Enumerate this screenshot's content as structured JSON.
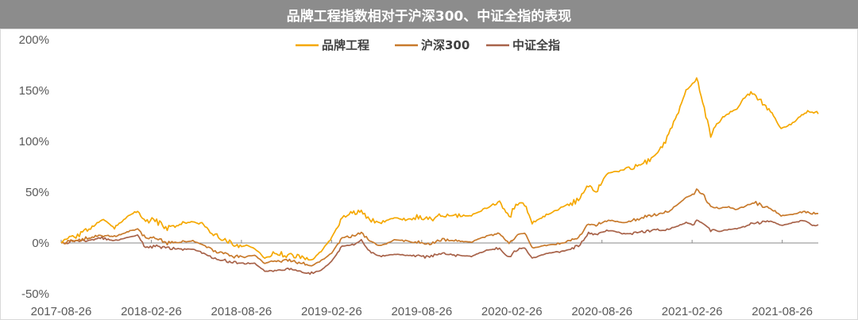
{
  "chart_data": {
    "type": "line",
    "title": "品牌工程指数相对于沪深300、中证全指的表现",
    "xlabel": "",
    "ylabel": "",
    "y_axis_unit": "%",
    "ylim": [
      -50,
      200
    ],
    "y_ticks": [
      "200%",
      "150%",
      "100%",
      "50%",
      "0%",
      "-50%"
    ],
    "y_tick_values": [
      200,
      150,
      100,
      50,
      0,
      -50
    ],
    "x_tick_labels": [
      "2017-08-26",
      "2018-02-26",
      "2018-08-26",
      "2019-02-26",
      "2019-08-26",
      "2020-02-26",
      "2020-08-26",
      "2021-02-26",
      "2021-08-26"
    ],
    "x_range": [
      "2017-08-26",
      "2021-10-10"
    ],
    "grid": false,
    "legend_position": "top-center",
    "series": [
      {
        "name": "品牌工程",
        "color": "#F5A800",
        "points": [
          [
            "2017-08-26",
            0
          ],
          [
            "2017-10-01",
            8
          ],
          [
            "2017-11-15",
            22
          ],
          [
            "2017-12-10",
            15
          ],
          [
            "2018-01-10",
            28
          ],
          [
            "2018-01-25",
            31
          ],
          [
            "2018-02-10",
            22
          ],
          [
            "2018-03-01",
            22
          ],
          [
            "2018-03-25",
            14
          ],
          [
            "2018-04-25",
            19
          ],
          [
            "2018-05-15",
            21
          ],
          [
            "2018-06-05",
            18
          ],
          [
            "2018-06-25",
            8
          ],
          [
            "2018-07-15",
            5
          ],
          [
            "2018-08-05",
            -2
          ],
          [
            "2018-08-26",
            -3
          ],
          [
            "2018-09-15",
            -5
          ],
          [
            "2018-10-05",
            -15
          ],
          [
            "2018-10-25",
            -10
          ],
          [
            "2018-11-20",
            -12
          ],
          [
            "2018-12-15",
            -14
          ],
          [
            "2019-01-03",
            -17
          ],
          [
            "2019-01-25",
            -8
          ],
          [
            "2019-02-15",
            5
          ],
          [
            "2019-03-08",
            25
          ],
          [
            "2019-03-25",
            30
          ],
          [
            "2019-04-15",
            31
          ],
          [
            "2019-05-05",
            22
          ],
          [
            "2019-05-25",
            20
          ],
          [
            "2019-06-20",
            25
          ],
          [
            "2019-07-15",
            23
          ],
          [
            "2019-08-10",
            26
          ],
          [
            "2019-08-26",
            22
          ],
          [
            "2019-09-20",
            28
          ],
          [
            "2019-10-20",
            27
          ],
          [
            "2019-11-20",
            27
          ],
          [
            "2019-12-20",
            34
          ],
          [
            "2020-01-15",
            41
          ],
          [
            "2020-02-03",
            25
          ],
          [
            "2020-02-20",
            40
          ],
          [
            "2020-03-05",
            38
          ],
          [
            "2020-03-20",
            20
          ],
          [
            "2020-04-20",
            28
          ],
          [
            "2020-05-20",
            36
          ],
          [
            "2020-06-20",
            42
          ],
          [
            "2020-07-10",
            56
          ],
          [
            "2020-07-25",
            50
          ],
          [
            "2020-08-15",
            68
          ],
          [
            "2020-08-26",
            70
          ],
          [
            "2020-09-15",
            72
          ],
          [
            "2020-10-15",
            76
          ],
          [
            "2020-11-15",
            83
          ],
          [
            "2020-12-10",
            100
          ],
          [
            "2021-01-05",
            130
          ],
          [
            "2021-01-20",
            150
          ],
          [
            "2021-02-05",
            158
          ],
          [
            "2021-02-10",
            163
          ],
          [
            "2021-02-22",
            140
          ],
          [
            "2021-03-10",
            105
          ],
          [
            "2021-03-25",
            120
          ],
          [
            "2021-04-15",
            128
          ],
          [
            "2021-05-01",
            132
          ],
          [
            "2021-05-20",
            145
          ],
          [
            "2021-06-01",
            148
          ],
          [
            "2021-06-15",
            140
          ],
          [
            "2021-07-10",
            128
          ],
          [
            "2021-07-28",
            112
          ],
          [
            "2021-08-20",
            118
          ],
          [
            "2021-09-10",
            126
          ],
          [
            "2021-09-25",
            130
          ],
          [
            "2021-10-10",
            127
          ]
        ]
      },
      {
        "name": "沪深300",
        "color": "#C87A2C",
        "points": [
          [
            "2017-08-26",
            0
          ],
          [
            "2017-10-01",
            3
          ],
          [
            "2017-11-15",
            8
          ],
          [
            "2017-12-10",
            6
          ],
          [
            "2018-01-10",
            12
          ],
          [
            "2018-01-25",
            14
          ],
          [
            "2018-02-10",
            5
          ],
          [
            "2018-03-01",
            5
          ],
          [
            "2018-03-25",
            0
          ],
          [
            "2018-04-25",
            1
          ],
          [
            "2018-05-15",
            2
          ],
          [
            "2018-06-05",
            -2
          ],
          [
            "2018-06-25",
            -8
          ],
          [
            "2018-07-15",
            -10
          ],
          [
            "2018-08-05",
            -13
          ],
          [
            "2018-08-26",
            -14
          ],
          [
            "2018-09-15",
            -12
          ],
          [
            "2018-10-05",
            -20
          ],
          [
            "2018-10-25",
            -18
          ],
          [
            "2018-11-20",
            -17
          ],
          [
            "2018-12-15",
            -20
          ],
          [
            "2019-01-03",
            -22
          ],
          [
            "2019-01-25",
            -18
          ],
          [
            "2019-02-15",
            -10
          ],
          [
            "2019-03-08",
            5
          ],
          [
            "2019-03-25",
            6
          ],
          [
            "2019-04-15",
            11
          ],
          [
            "2019-05-05",
            0
          ],
          [
            "2019-05-25",
            -3
          ],
          [
            "2019-06-20",
            3
          ],
          [
            "2019-07-15",
            2
          ],
          [
            "2019-08-10",
            0
          ],
          [
            "2019-08-26",
            -1
          ],
          [
            "2019-09-20",
            3
          ],
          [
            "2019-10-20",
            2
          ],
          [
            "2019-11-20",
            1
          ],
          [
            "2019-12-20",
            7
          ],
          [
            "2020-01-15",
            9
          ],
          [
            "2020-02-03",
            0
          ],
          [
            "2020-02-20",
            8
          ],
          [
            "2020-03-05",
            10
          ],
          [
            "2020-03-20",
            -5
          ],
          [
            "2020-04-20",
            -2
          ],
          [
            "2020-05-20",
            0
          ],
          [
            "2020-06-20",
            5
          ],
          [
            "2020-07-10",
            20
          ],
          [
            "2020-07-25",
            18
          ],
          [
            "2020-08-15",
            22
          ],
          [
            "2020-08-26",
            22
          ],
          [
            "2020-09-15",
            20
          ],
          [
            "2020-10-15",
            23
          ],
          [
            "2020-11-15",
            28
          ],
          [
            "2020-12-10",
            30
          ],
          [
            "2021-01-05",
            38
          ],
          [
            "2021-01-20",
            45
          ],
          [
            "2021-02-05",
            48
          ],
          [
            "2021-02-10",
            53
          ],
          [
            "2021-02-22",
            48
          ],
          [
            "2021-03-10",
            35
          ],
          [
            "2021-03-25",
            35
          ],
          [
            "2021-04-15",
            35
          ],
          [
            "2021-05-01",
            33
          ],
          [
            "2021-05-20",
            37
          ],
          [
            "2021-06-01",
            40
          ],
          [
            "2021-06-15",
            38
          ],
          [
            "2021-07-10",
            33
          ],
          [
            "2021-07-28",
            27
          ],
          [
            "2021-08-20",
            28
          ],
          [
            "2021-09-10",
            31
          ],
          [
            "2021-09-25",
            29
          ],
          [
            "2021-10-10",
            29
          ]
        ]
      },
      {
        "name": "中证全指",
        "color": "#A8634A",
        "points": [
          [
            "2017-08-26",
            0
          ],
          [
            "2017-10-01",
            2
          ],
          [
            "2017-11-15",
            5
          ],
          [
            "2017-12-10",
            2
          ],
          [
            "2018-01-10",
            6
          ],
          [
            "2018-01-25",
            8
          ],
          [
            "2018-02-10",
            -5
          ],
          [
            "2018-03-01",
            -3
          ],
          [
            "2018-03-25",
            -5
          ],
          [
            "2018-04-25",
            -6
          ],
          [
            "2018-05-15",
            -6
          ],
          [
            "2018-06-05",
            -10
          ],
          [
            "2018-06-25",
            -15
          ],
          [
            "2018-07-15",
            -17
          ],
          [
            "2018-08-05",
            -19
          ],
          [
            "2018-08-26",
            -20
          ],
          [
            "2018-09-15",
            -20
          ],
          [
            "2018-10-05",
            -28
          ],
          [
            "2018-10-25",
            -27
          ],
          [
            "2018-11-20",
            -25
          ],
          [
            "2018-12-15",
            -28
          ],
          [
            "2019-01-03",
            -30
          ],
          [
            "2019-01-25",
            -27
          ],
          [
            "2019-02-15",
            -18
          ],
          [
            "2019-03-08",
            -3
          ],
          [
            "2019-03-25",
            -2
          ],
          [
            "2019-04-15",
            2
          ],
          [
            "2019-05-05",
            -10
          ],
          [
            "2019-05-25",
            -13
          ],
          [
            "2019-06-20",
            -11
          ],
          [
            "2019-07-15",
            -12
          ],
          [
            "2019-08-10",
            -13
          ],
          [
            "2019-08-26",
            -14
          ],
          [
            "2019-09-20",
            -10
          ],
          [
            "2019-10-20",
            -12
          ],
          [
            "2019-11-20",
            -13
          ],
          [
            "2019-12-20",
            -7
          ],
          [
            "2020-01-15",
            -5
          ],
          [
            "2020-02-03",
            -14
          ],
          [
            "2020-02-20",
            -6
          ],
          [
            "2020-03-05",
            -5
          ],
          [
            "2020-03-20",
            -15
          ],
          [
            "2020-04-20",
            -10
          ],
          [
            "2020-05-20",
            -8
          ],
          [
            "2020-06-20",
            -3
          ],
          [
            "2020-07-10",
            10
          ],
          [
            "2020-07-25",
            8
          ],
          [
            "2020-08-15",
            12
          ],
          [
            "2020-08-26",
            12
          ],
          [
            "2020-09-15",
            9
          ],
          [
            "2020-10-15",
            10
          ],
          [
            "2020-11-15",
            13
          ],
          [
            "2020-12-10",
            12
          ],
          [
            "2021-01-05",
            17
          ],
          [
            "2021-01-20",
            20
          ],
          [
            "2021-02-05",
            18
          ],
          [
            "2021-02-10",
            23
          ],
          [
            "2021-02-22",
            20
          ],
          [
            "2021-03-10",
            12
          ],
          [
            "2021-03-25",
            12
          ],
          [
            "2021-04-15",
            13
          ],
          [
            "2021-05-01",
            14
          ],
          [
            "2021-05-20",
            17
          ],
          [
            "2021-06-01",
            20
          ],
          [
            "2021-06-15",
            20
          ],
          [
            "2021-07-10",
            22
          ],
          [
            "2021-07-28",
            17
          ],
          [
            "2021-08-20",
            20
          ],
          [
            "2021-09-10",
            22
          ],
          [
            "2021-09-25",
            18
          ],
          [
            "2021-10-10",
            18
          ]
        ]
      }
    ]
  }
}
